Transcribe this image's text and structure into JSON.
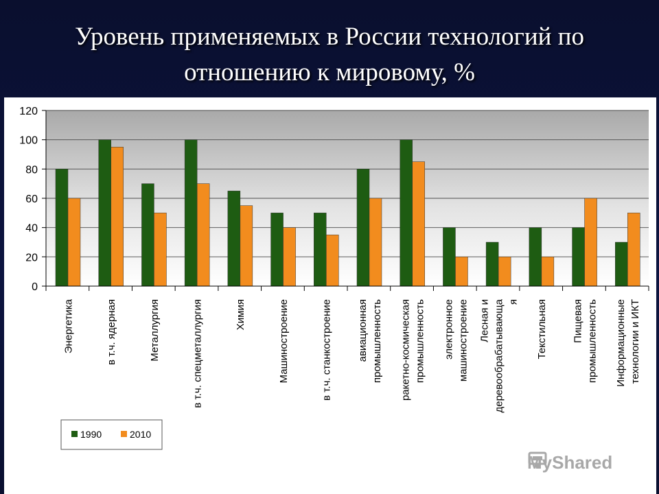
{
  "slide": {
    "title_line1": "Уровень применяемых в России технологий по",
    "title_line2": "отношению к мировому, %"
  },
  "watermark": {
    "text": "MyShared",
    "icon": "presentation-icon"
  },
  "chart_data": {
    "type": "bar",
    "ylim": [
      0,
      120
    ],
    "yticks": [
      0,
      20,
      40,
      60,
      80,
      100,
      120
    ],
    "grid": true,
    "legend_position": "bottom-left",
    "categories": [
      [
        "Энергетика"
      ],
      [
        "в т.ч. ядерная"
      ],
      [
        "Металлургия"
      ],
      [
        "в т.ч. спецметаллургия"
      ],
      [
        "Химия"
      ],
      [
        "Машиностроение"
      ],
      [
        "в т.ч. станкостроение"
      ],
      [
        "авиационная",
        "промышленность"
      ],
      [
        "ракетно-космическая",
        "промышленность"
      ],
      [
        "электронное",
        "машиностроение"
      ],
      [
        "Лесная и",
        "деревообрабатывающа",
        "я"
      ],
      [
        "Текстильная"
      ],
      [
        "Пищевая",
        "промышленность"
      ],
      [
        "Информационные",
        "технологии и ИКТ"
      ]
    ],
    "series": [
      {
        "name": "1990",
        "color": "#1e5c12",
        "values": [
          80,
          100,
          70,
          100,
          65,
          50,
          50,
          80,
          100,
          40,
          30,
          40,
          40,
          30
        ]
      },
      {
        "name": "2010",
        "color": "#f28c1e",
        "values": [
          60,
          95,
          50,
          70,
          55,
          40,
          35,
          60,
          85,
          20,
          20,
          20,
          60,
          50
        ]
      }
    ]
  }
}
